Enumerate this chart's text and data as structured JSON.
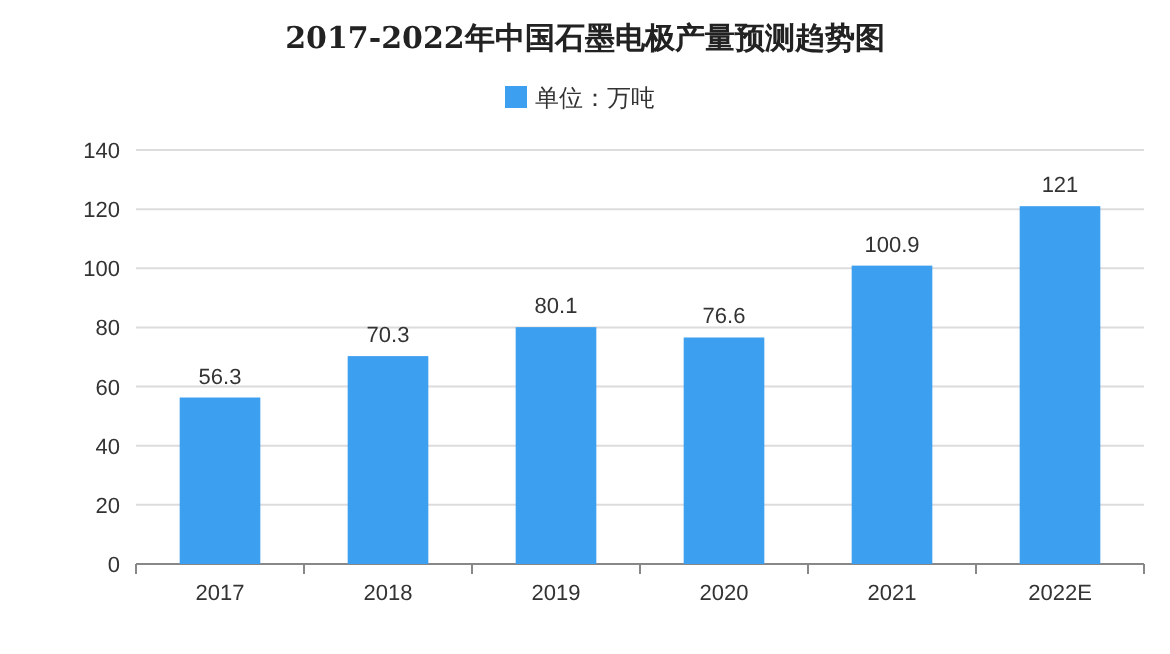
{
  "chart_data": {
    "type": "bar",
    "title": "2017-2022年中国石墨电极产量预测趋势图",
    "categories": [
      "2017",
      "2018",
      "2019",
      "2020",
      "2021",
      "2022E"
    ],
    "series": [
      {
        "name": "单位：万吨",
        "color": "#3d9ff0",
        "values": [
          56.3,
          70.3,
          80.1,
          76.6,
          100.9,
          121
        ]
      }
    ],
    "ylim": [
      0,
      140
    ],
    "yticks": [
      0,
      20,
      40,
      60,
      80,
      100,
      120,
      140
    ],
    "grid": "y",
    "legend": "top",
    "data_labels": true
  }
}
